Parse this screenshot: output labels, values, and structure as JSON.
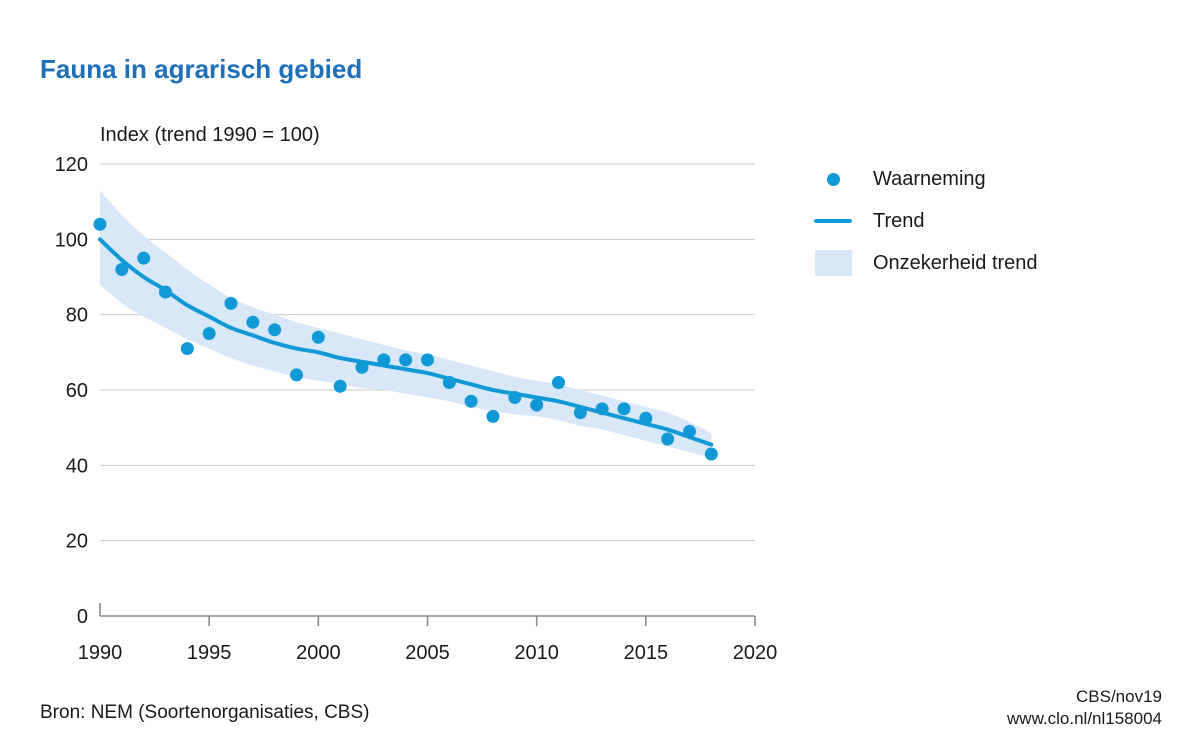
{
  "header": {
    "title": "Fauna in agrarisch gebied"
  },
  "chart_data": {
    "type": "scatter",
    "title": "Fauna in agrarisch gebied",
    "axis_title": "Index (trend 1990 = 100)",
    "xlabel": "",
    "ylabel": "Index (trend 1990 = 100)",
    "x": [
      1990,
      1991,
      1992,
      1993,
      1994,
      1995,
      1996,
      1997,
      1998,
      1999,
      2000,
      2001,
      2002,
      2003,
      2004,
      2005,
      2006,
      2007,
      2008,
      2009,
      2010,
      2011,
      2012,
      2013,
      2014,
      2015,
      2016,
      2017,
      2018
    ],
    "series": [
      {
        "name": "Waarneming",
        "type": "scatter",
        "values": [
          104,
          92,
          95,
          86,
          71,
          75,
          83,
          78,
          76,
          64,
          74,
          61,
          66,
          68,
          68,
          68,
          62,
          57,
          53,
          58,
          56,
          62,
          54,
          55,
          55,
          52.5,
          47,
          49,
          43
        ]
      },
      {
        "name": "Trend",
        "type": "line",
        "values": [
          100,
          94.5,
          90,
          86.5,
          82.5,
          79.5,
          76.5,
          74.5,
          72.5,
          71,
          70,
          68.5,
          67.5,
          66.5,
          65.5,
          64.5,
          63,
          61.5,
          60,
          59,
          58,
          57,
          55.5,
          54,
          52.5,
          51,
          49.5,
          47.5,
          45.5
        ]
      },
      {
        "name": "Onzekerheid trend",
        "type": "band",
        "upper": [
          113,
          106.5,
          101,
          96.5,
          92,
          88,
          84.5,
          82,
          80,
          78,
          76.5,
          75,
          73.5,
          72,
          70.5,
          69.5,
          68,
          66.5,
          65,
          63.5,
          62.5,
          61.5,
          60,
          58.5,
          57,
          55.5,
          54,
          51.5,
          48.5
        ],
        "lower": [
          88,
          83,
          79.5,
          76.5,
          73.5,
          71,
          68.5,
          66.5,
          65,
          63.5,
          62.5,
          61.5,
          60.5,
          60,
          59,
          58,
          57,
          55.5,
          54.5,
          53.5,
          53,
          52,
          50.5,
          49.5,
          48,
          46.5,
          45,
          43.5,
          42
        ]
      }
    ],
    "xlim": [
      1990,
      2020
    ],
    "ylim": [
      0,
      120
    ],
    "x_ticks": [
      1990,
      1995,
      2000,
      2005,
      2010,
      2015,
      2020
    ],
    "y_ticks": [
      0,
      20,
      40,
      60,
      80,
      100,
      120
    ],
    "grid": "horizontal-only",
    "legend_position": "right-top"
  },
  "legend": {
    "items": [
      {
        "label": "Waarneming",
        "marker": "dot"
      },
      {
        "label": "Trend",
        "marker": "line"
      },
      {
        "label": "Onzekerheid trend",
        "marker": "square"
      }
    ]
  },
  "footer": {
    "source": "Bron: NEM (Soortenorganisaties, CBS)",
    "credit": "CBS/nov19",
    "url": "www.clo.nl/nl158004"
  },
  "colors": {
    "accent": "#1198d7",
    "band": "#d9e8f8",
    "title": "#1d6fb8",
    "text": "#1a1a1a",
    "grid": "#cbcbcb",
    "axis": "#8a8a8a"
  }
}
